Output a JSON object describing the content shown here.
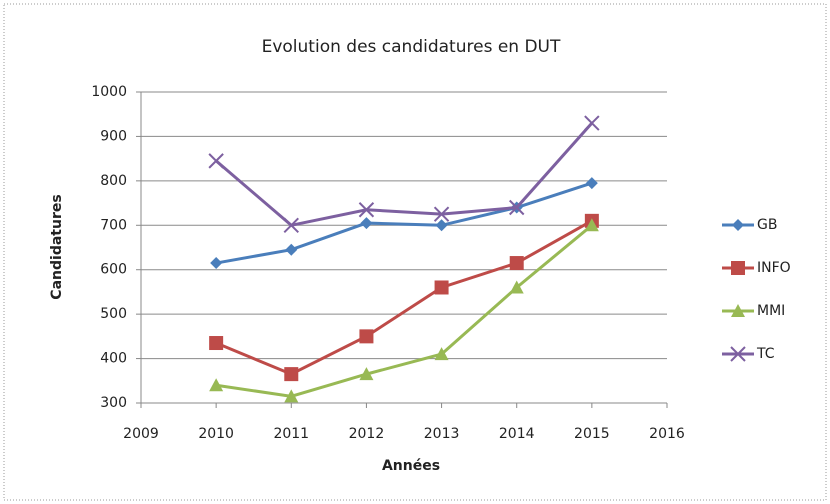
{
  "chart_data": {
    "type": "line",
    "title": "Evolution des candidatures en DUT",
    "x_label": "Années",
    "y_label": "Candidatures",
    "x": [
      2010,
      2011,
      2012,
      2013,
      2014,
      2015
    ],
    "series": [
      {
        "name": "GB",
        "color": "#4a7ebb",
        "marker": "diamond",
        "values": [
          615,
          645,
          705,
          700,
          740,
          795
        ]
      },
      {
        "name": "INFO",
        "color": "#be4b48",
        "marker": "square",
        "values": [
          435,
          365,
          450,
          560,
          615,
          710
        ]
      },
      {
        "name": "MMI",
        "color": "#98b954",
        "marker": "triangle",
        "values": [
          340,
          315,
          365,
          410,
          560,
          700
        ]
      },
      {
        "name": "TC",
        "color": "#7d60a0",
        "marker": "x",
        "values": [
          845,
          700,
          735,
          725,
          740,
          930
        ]
      }
    ],
    "xlim": [
      2009,
      2016
    ],
    "xticks": [
      2009,
      2010,
      2011,
      2012,
      2013,
      2014,
      2015,
      2016
    ],
    "ylim": [
      300,
      1000
    ],
    "yticks": [
      300,
      400,
      500,
      600,
      700,
      800,
      900,
      1000
    ],
    "grid": true,
    "legend": "right"
  }
}
